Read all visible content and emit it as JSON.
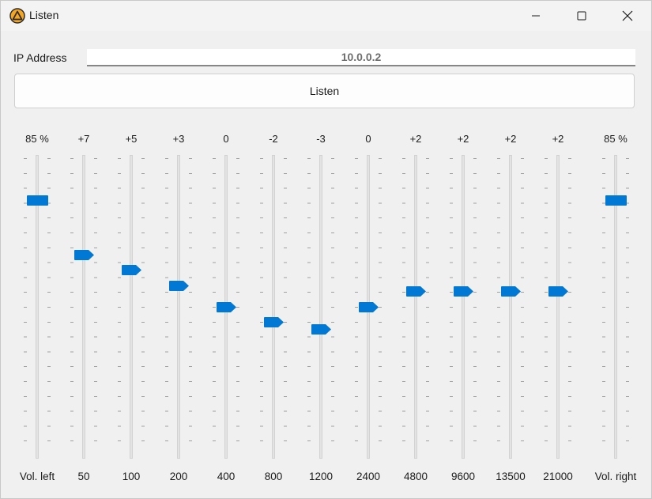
{
  "window": {
    "title": "Listen",
    "accent_color": "#0078d4",
    "icon_color": "#f5a623"
  },
  "connection": {
    "ip_label": "IP Address",
    "ip_value": "10.0.0.2",
    "listen_button": "Listen"
  },
  "sliders": [
    {
      "id": "vol-left",
      "value_label": "85 %",
      "label": "Vol. left",
      "level": 0.85,
      "shape": "rect"
    },
    {
      "id": "eq-50",
      "value_label": "+7",
      "label": "50",
      "level": 0.67,
      "shape": "arrow"
    },
    {
      "id": "eq-100",
      "value_label": "+5",
      "label": "100",
      "level": 0.62,
      "shape": "arrow"
    },
    {
      "id": "eq-200",
      "value_label": "+3",
      "label": "200",
      "level": 0.57,
      "shape": "arrow"
    },
    {
      "id": "eq-400",
      "value_label": "0",
      "label": "400",
      "level": 0.5,
      "shape": "arrow"
    },
    {
      "id": "eq-800",
      "value_label": "-2",
      "label": "800",
      "level": 0.45,
      "shape": "arrow"
    },
    {
      "id": "eq-1200",
      "value_label": "-3",
      "label": "1200",
      "level": 0.425,
      "shape": "arrow"
    },
    {
      "id": "eq-2400",
      "value_label": "0",
      "label": "2400",
      "level": 0.5,
      "shape": "arrow"
    },
    {
      "id": "eq-4800",
      "value_label": "+2",
      "label": "4800",
      "level": 0.55,
      "shape": "arrow"
    },
    {
      "id": "eq-9600",
      "value_label": "+2",
      "label": "9600",
      "level": 0.55,
      "shape": "arrow"
    },
    {
      "id": "eq-13500",
      "value_label": "+2",
      "label": "13500",
      "level": 0.55,
      "shape": "arrow"
    },
    {
      "id": "eq-21000",
      "value_label": "+2",
      "label": "21000",
      "level": 0.55,
      "shape": "arrow"
    },
    {
      "id": "vol-right",
      "value_label": "85 %",
      "label": "Vol. right",
      "level": 0.85,
      "shape": "rect"
    }
  ]
}
